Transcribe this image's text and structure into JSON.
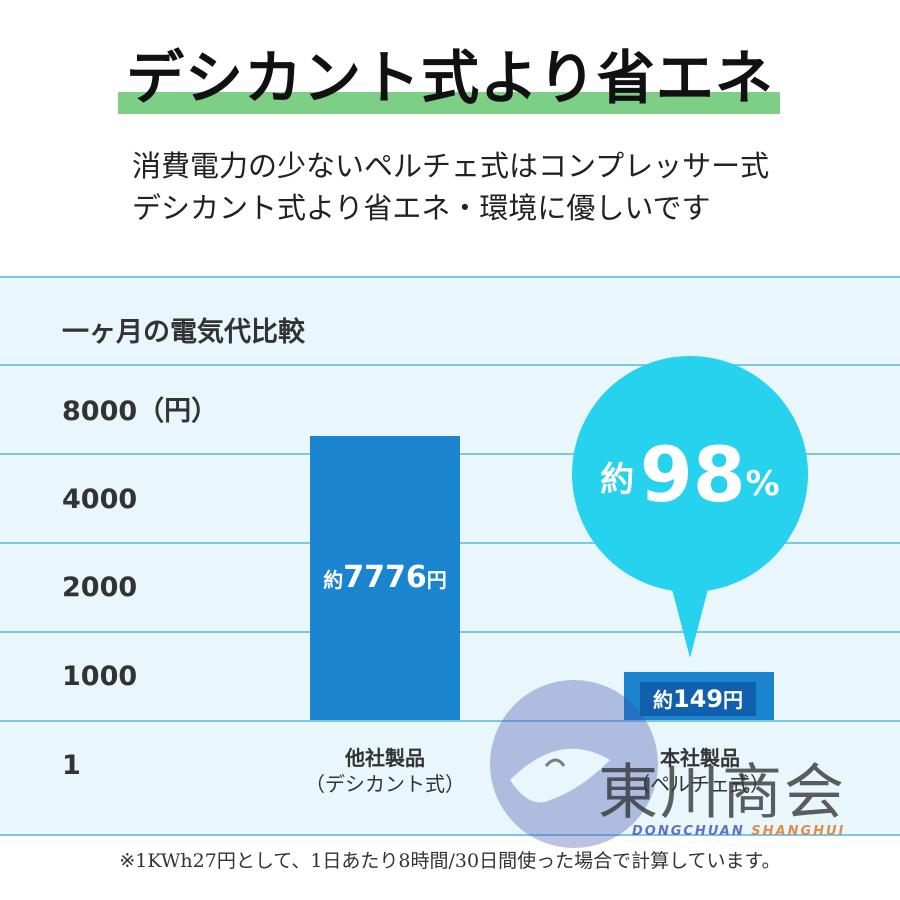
{
  "headline": "デシカント式より省エネ",
  "subtitle": {
    "line1": "消費電力の少ないペルチェ式はコンプレッサー式",
    "line2": "デシカント式より省エネ・環境に優しいです"
  },
  "colors": {
    "headline_highlight": "#7ccf84",
    "panel_bg": "#e9f6fc",
    "grid_line": "#7cc6e6",
    "bar": "#1b84cf",
    "bubble": "#27d2ef"
  },
  "chart_data": {
    "type": "bar",
    "title": "一ヶ月の電気代比較",
    "y_ticks": [
      "8000（円）",
      "4000",
      "2000",
      "1000",
      "1"
    ],
    "categories": [
      {
        "name": "他社製品",
        "sub": "（デシカント式）"
      },
      {
        "name": "本社製品",
        "sub": "（ペルチェ式）"
      }
    ],
    "values": [
      7776,
      149
    ],
    "value_labels": [
      {
        "prefix": "約",
        "value": "7776",
        "unit": "円"
      },
      {
        "prefix": "約",
        "value": "149",
        "unit": "円"
      }
    ],
    "unit": "円",
    "callout": {
      "prefix": "約",
      "value": "98",
      "unit": "%"
    }
  },
  "watermark": {
    "text": "東川商会",
    "sub_a": "DONGCHUAN",
    "sub_b": "SHANGHUI"
  },
  "footnote": "※1KWh27円として、1日あたり8時間/30日間使った場合で計算しています。"
}
